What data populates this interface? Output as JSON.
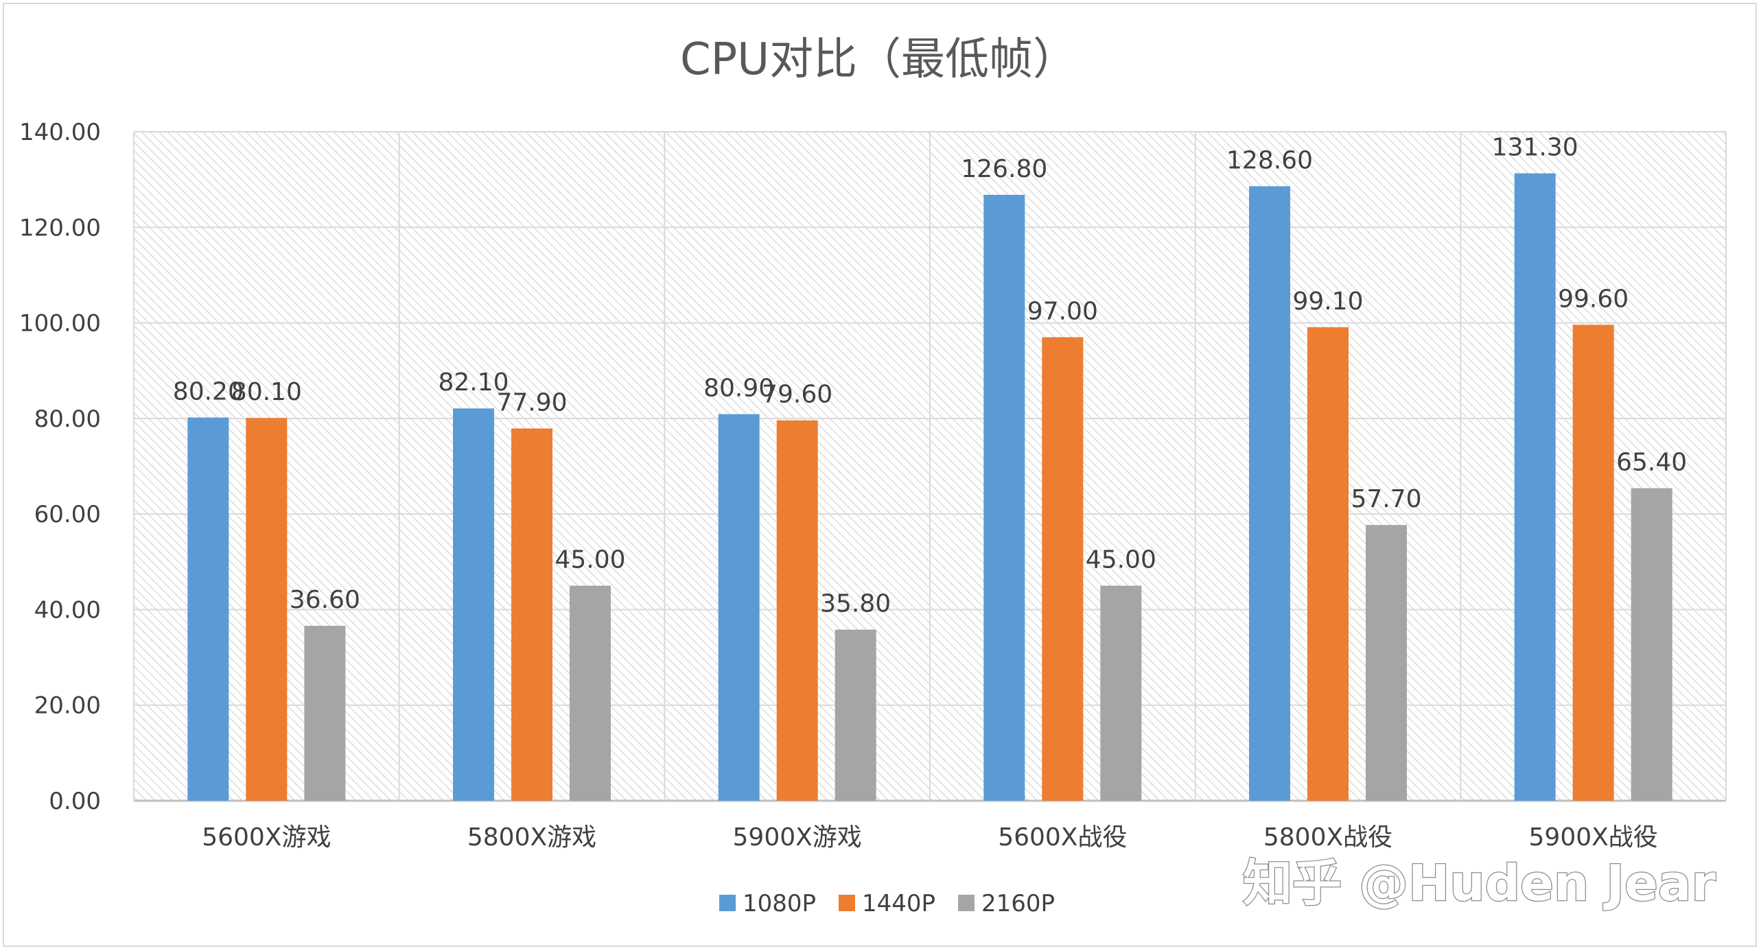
{
  "chart_data": {
    "type": "bar",
    "title": "CPU对比（最低帧）",
    "xlabel": "",
    "ylabel": "",
    "categories": [
      "5600X游戏",
      "5800X游戏",
      "5900X游戏",
      "5600X战役",
      "5800X战役",
      "5900X战役"
    ],
    "series": [
      {
        "name": "1080P",
        "color": "#5b9bd5",
        "values": [
          80.2,
          82.1,
          80.9,
          126.8,
          128.6,
          131.3
        ]
      },
      {
        "name": "1440P",
        "color": "#ed7d31",
        "values": [
          80.1,
          77.9,
          79.6,
          97.0,
          99.1,
          99.6
        ]
      },
      {
        "name": "2160P",
        "color": "#a5a5a5",
        "values": [
          36.6,
          45.0,
          35.8,
          45.0,
          57.7,
          65.4
        ]
      }
    ],
    "ylim": [
      0,
      140
    ],
    "yticks": [
      0,
      20,
      40,
      60,
      80,
      100,
      120,
      140
    ],
    "grid": true,
    "legend": "bottom",
    "data_labels": true
  },
  "watermark": "知乎 @Huden Jear"
}
